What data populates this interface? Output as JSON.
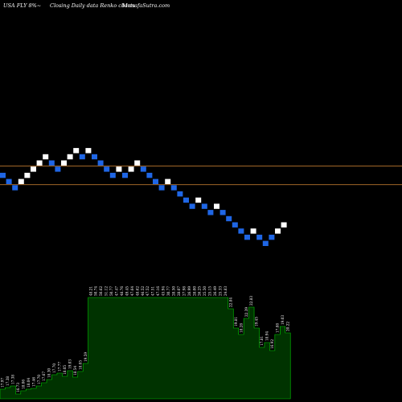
{
  "header": {
    "ticker": "USA FLY 8%~",
    "line": "Closing Daily data  Renko  charts",
    "site": "MunafaSutra.com"
  },
  "colors": {
    "background": "#000000",
    "up_brick": "#ffffff",
    "down_brick": "#1f66e5",
    "reference_line": "#b8752e",
    "volume_fill": "#003300",
    "volume_stroke": "#00cc00",
    "label": "#ffffff"
  },
  "chart_data": [
    {
      "type": "renko",
      "title": "",
      "bricks": [
        {
          "d": "down",
          "v": 7
        },
        {
          "d": "down",
          "v": 6
        },
        {
          "d": "down",
          "v": 5
        },
        {
          "d": "up",
          "v": 6
        },
        {
          "d": "up",
          "v": 7
        },
        {
          "d": "up",
          "v": 8
        },
        {
          "d": "up",
          "v": 9
        },
        {
          "d": "up",
          "v": 10
        },
        {
          "d": "down",
          "v": 9
        },
        {
          "d": "down",
          "v": 8
        },
        {
          "d": "up",
          "v": 9
        },
        {
          "d": "up",
          "v": 10
        },
        {
          "d": "up",
          "v": 11
        },
        {
          "d": "down",
          "v": 10
        },
        {
          "d": "up",
          "v": 11
        },
        {
          "d": "down",
          "v": 10
        },
        {
          "d": "down",
          "v": 9
        },
        {
          "d": "down",
          "v": 8
        },
        {
          "d": "down",
          "v": 7
        },
        {
          "d": "up",
          "v": 8
        },
        {
          "d": "down",
          "v": 7
        },
        {
          "d": "up",
          "v": 8
        },
        {
          "d": "up",
          "v": 9
        },
        {
          "d": "down",
          "v": 8
        },
        {
          "d": "down",
          "v": 7
        },
        {
          "d": "down",
          "v": 6
        },
        {
          "d": "down",
          "v": 5
        },
        {
          "d": "up",
          "v": 6
        },
        {
          "d": "down",
          "v": 5
        },
        {
          "d": "down",
          "v": 4
        },
        {
          "d": "down",
          "v": 3
        },
        {
          "d": "down",
          "v": 2
        },
        {
          "d": "up",
          "v": 3
        },
        {
          "d": "down",
          "v": 2
        },
        {
          "d": "down",
          "v": 1
        },
        {
          "d": "up",
          "v": 2
        },
        {
          "d": "down",
          "v": 1
        },
        {
          "d": "down",
          "v": 0
        },
        {
          "d": "down",
          "v": -1
        },
        {
          "d": "down",
          "v": -2
        },
        {
          "d": "down",
          "v": -3
        },
        {
          "d": "up",
          "v": -2
        },
        {
          "d": "down",
          "v": -3
        },
        {
          "d": "down",
          "v": -4
        },
        {
          "d": "down",
          "v": -3
        },
        {
          "d": "up",
          "v": -2
        },
        {
          "d": "up",
          "v": -1
        }
      ],
      "reference_lines": [
        8,
        5
      ],
      "grid": false
    },
    {
      "type": "bar",
      "title": "",
      "values": [
        {
          "v": 12,
          "label": "17.97"
        },
        {
          "v": 14,
          "label": "17.38"
        },
        {
          "v": 16,
          "label": "17.38"
        },
        {
          "v": 6,
          "label": "16.73"
        },
        {
          "v": 10,
          "label": "18.06"
        },
        {
          "v": 12,
          "label": "18.04"
        },
        {
          "v": 13,
          "label": "17.46"
        },
        {
          "v": 16,
          "label": "17.70"
        },
        {
          "v": 20,
          "label": "17.67"
        },
        {
          "v": 24,
          "label": "18.30"
        },
        {
          "v": 30,
          "label": "17.70"
        },
        {
          "v": 32,
          "label": "17.77"
        },
        {
          "v": 28,
          "label": "18.05"
        },
        {
          "v": 35,
          "label": "19.03"
        },
        {
          "v": 27,
          "label": "18.54"
        },
        {
          "v": 34,
          "label": "18.05"
        },
        {
          "v": 44,
          "label": "19.59"
        },
        {
          "v": 126,
          "label": "48.21"
        },
        {
          "v": 126,
          "label": "50.74"
        },
        {
          "v": 126,
          "label": "50.62"
        },
        {
          "v": 126,
          "label": "51.12"
        },
        {
          "v": 126,
          "label": "50.77"
        },
        {
          "v": 126,
          "label": "47.47"
        },
        {
          "v": 126,
          "label": "48.76"
        },
        {
          "v": 126,
          "label": "49.45"
        },
        {
          "v": 126,
          "label": "47.64"
        },
        {
          "v": 126,
          "label": "48.62"
        },
        {
          "v": 126,
          "label": "46.52"
        },
        {
          "v": 126,
          "label": "47.52"
        },
        {
          "v": 126,
          "label": "47.51"
        },
        {
          "v": 126,
          "label": "47.16"
        },
        {
          "v": 126,
          "label": "45.94"
        },
        {
          "v": 126,
          "label": "30.77"
        },
        {
          "v": 126,
          "label": "28.50"
        },
        {
          "v": 126,
          "label": "28.07"
        },
        {
          "v": 126,
          "label": "27.98"
        },
        {
          "v": 126,
          "label": "26.99"
        },
        {
          "v": 126,
          "label": "28.00"
        },
        {
          "v": 126,
          "label": "26.25"
        },
        {
          "v": 126,
          "label": "25.50"
        },
        {
          "v": 126,
          "label": "25.15"
        },
        {
          "v": 126,
          "label": "26.49"
        },
        {
          "v": 126,
          "label": "25.33"
        },
        {
          "v": 126,
          "label": "24.83"
        },
        {
          "v": 112,
          "label": "22.84"
        },
        {
          "v": 88,
          "label": "19.81"
        },
        {
          "v": 80,
          "label": "18.28"
        },
        {
          "v": 100,
          "label": "22.39"
        },
        {
          "v": 114,
          "label": "22.83"
        },
        {
          "v": 88,
          "label": "19.45"
        },
        {
          "v": 64,
          "label": "17.81"
        },
        {
          "v": 70,
          "label": "18.94"
        },
        {
          "v": 60,
          "label": "16.92"
        },
        {
          "v": 80,
          "label": "17.88"
        },
        {
          "v": 90,
          "label": "19.03"
        },
        {
          "v": 82,
          "label": "20.22"
        }
      ],
      "grid": false
    }
  ]
}
